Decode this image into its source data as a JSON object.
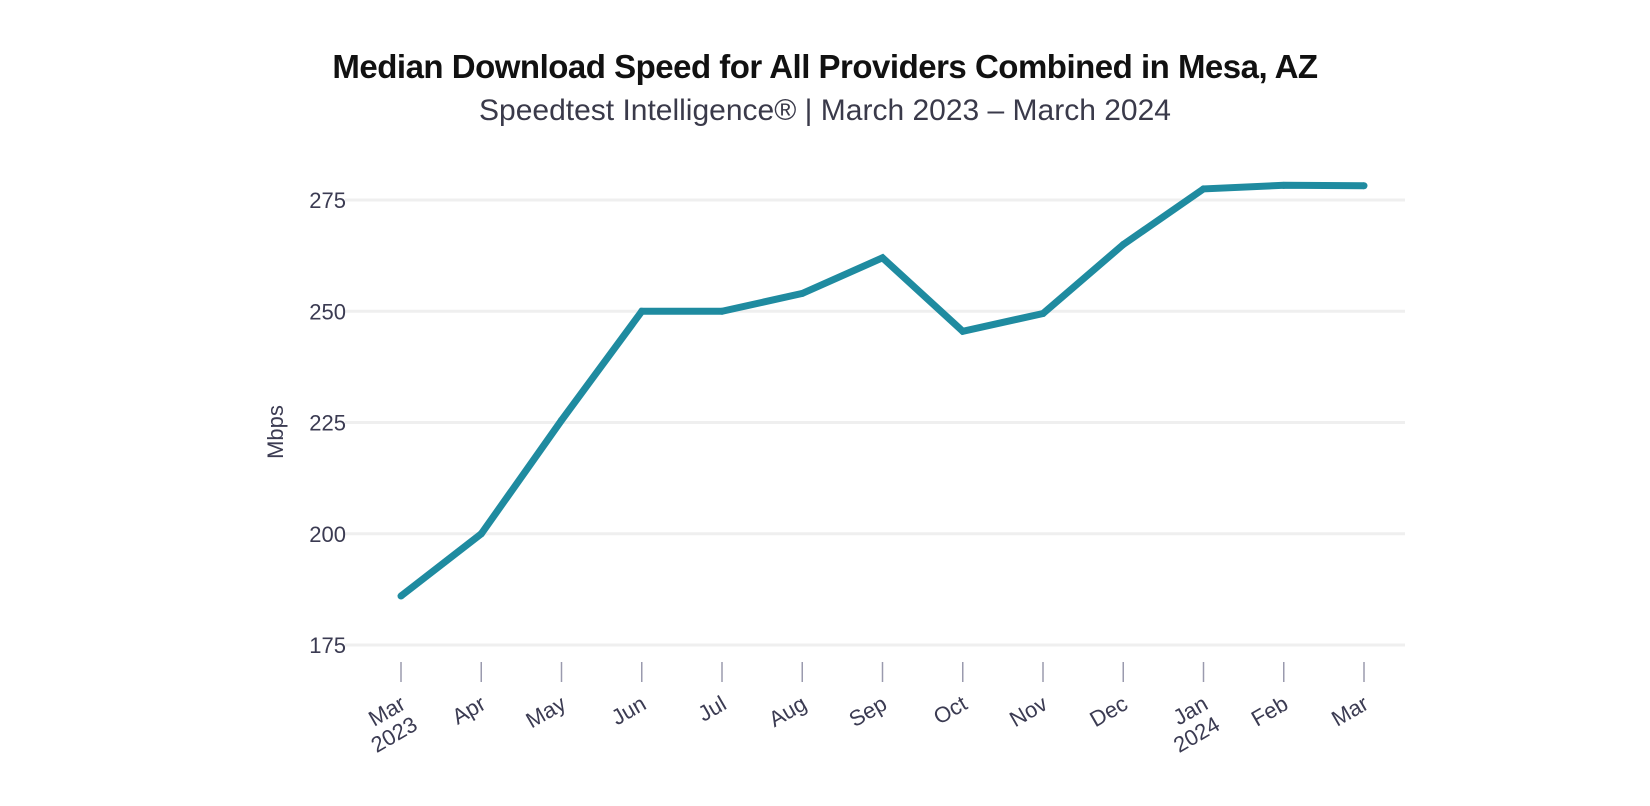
{
  "chart_data": {
    "type": "line",
    "title": "Median Download Speed for All Providers Combined in Mesa, AZ",
    "subtitle": "Speedtest Intelligence® | March 2023 – March 2024",
    "ylabel": "Mbps",
    "xlabel": "",
    "ylim": [
      175,
      280
    ],
    "yticks": [
      175,
      200,
      225,
      250,
      275
    ],
    "categories": [
      "Mar 2023",
      "Apr",
      "May",
      "Jun",
      "Jul",
      "Aug",
      "Sep",
      "Oct",
      "Nov",
      "Dec",
      "Jan 2024",
      "Feb",
      "Mar"
    ],
    "tick_labels": [
      [
        "Mar",
        "2023"
      ],
      [
        "Apr"
      ],
      [
        "May"
      ],
      [
        "Jun"
      ],
      [
        "Jul"
      ],
      [
        "Aug"
      ],
      [
        "Sep"
      ],
      [
        "Oct"
      ],
      [
        "Nov"
      ],
      [
        "Dec"
      ],
      [
        "Jan",
        "2024"
      ],
      [
        "Feb"
      ],
      [
        "Mar"
      ]
    ],
    "series": [
      {
        "values": [
          186,
          200,
          225.5,
          250,
          250,
          254,
          262,
          245.5,
          249.5,
          265,
          277.5,
          278.3,
          278.2
        ],
        "color": "#1f8ba0"
      }
    ],
    "grid": true,
    "gridline_color": "#efefef"
  }
}
